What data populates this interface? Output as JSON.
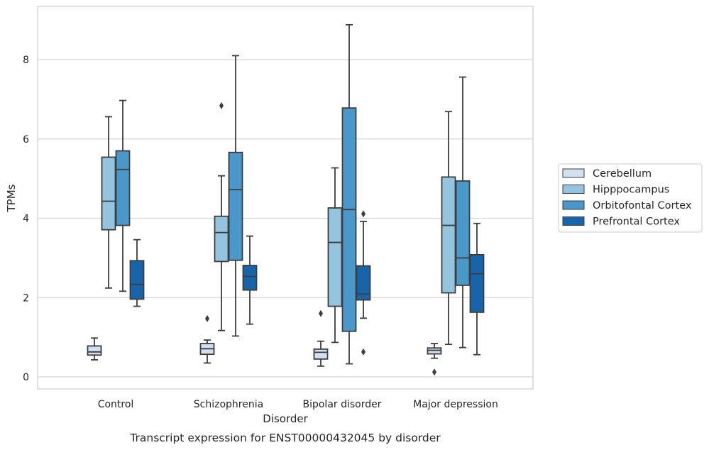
{
  "caption": "Transcript expression for ENST00000432045 by disorder",
  "chart_data": {
    "type": "box",
    "xlabel": "Disorder",
    "ylabel": "TPMs",
    "ylim": [
      -0.3,
      9.4
    ],
    "yticks": [
      0,
      2,
      4,
      6,
      8
    ],
    "grid": "horizontal",
    "legend_position": "right",
    "categories": [
      "Control",
      "Schizophrenia",
      "Bipolar disorder",
      "Major depression"
    ],
    "series": [
      {
        "name": "Cerebellum",
        "color": "#d0e1f2",
        "boxes": [
          {
            "whislo": 0.43,
            "q1": 0.55,
            "med": 0.63,
            "q3": 0.78,
            "whishi": 0.98,
            "fliers": []
          },
          {
            "whislo": 0.35,
            "q1": 0.57,
            "med": 0.71,
            "q3": 0.84,
            "whishi": 0.93,
            "fliers": [
              1.47
            ]
          },
          {
            "whislo": 0.27,
            "q1": 0.45,
            "med": 0.62,
            "q3": 0.7,
            "whishi": 0.9,
            "fliers": [
              1.6
            ]
          },
          {
            "whislo": 0.47,
            "q1": 0.58,
            "med": 0.67,
            "q3": 0.73,
            "whishi": 0.84,
            "fliers": [
              0.12
            ]
          }
        ]
      },
      {
        "name": "Hipppocampus",
        "color": "#94c4df",
        "boxes": [
          {
            "whislo": 2.24,
            "q1": 3.71,
            "med": 4.43,
            "q3": 5.54,
            "whishi": 6.56,
            "fliers": []
          },
          {
            "whislo": 1.17,
            "q1": 2.91,
            "med": 3.64,
            "q3": 4.05,
            "whishi": 5.07,
            "fliers": [
              6.84
            ]
          },
          {
            "whislo": 0.87,
            "q1": 1.78,
            "med": 3.39,
            "q3": 4.26,
            "whishi": 5.27,
            "fliers": []
          },
          {
            "whislo": 0.82,
            "q1": 2.12,
            "med": 3.82,
            "q3": 5.04,
            "whishi": 6.69,
            "fliers": []
          }
        ]
      },
      {
        "name": "Orbitofontal Cortex",
        "color": "#4a98c9",
        "boxes": [
          {
            "whislo": 2.16,
            "q1": 3.82,
            "med": 5.23,
            "q3": 5.7,
            "whishi": 6.97,
            "fliers": []
          },
          {
            "whislo": 1.03,
            "q1": 2.94,
            "med": 4.72,
            "q3": 5.66,
            "whishi": 8.1,
            "fliers": []
          },
          {
            "whislo": 0.33,
            "q1": 1.15,
            "med": 4.22,
            "q3": 6.78,
            "whishi": 8.88,
            "fliers": []
          },
          {
            "whislo": 0.74,
            "q1": 2.31,
            "med": 3.0,
            "q3": 4.94,
            "whishi": 7.56,
            "fliers": []
          }
        ]
      },
      {
        "name": "Prefrontal Cortex",
        "color": "#1764ab",
        "boxes": [
          {
            "whislo": 1.78,
            "q1": 1.96,
            "med": 2.33,
            "q3": 2.93,
            "whishi": 3.46,
            "fliers": []
          },
          {
            "whislo": 1.33,
            "q1": 2.19,
            "med": 2.53,
            "q3": 2.81,
            "whishi": 3.55,
            "fliers": []
          },
          {
            "whislo": 1.48,
            "q1": 1.94,
            "med": 2.09,
            "q3": 2.8,
            "whishi": 3.92,
            "fliers": [
              4.11,
              0.63
            ]
          },
          {
            "whislo": 0.56,
            "q1": 1.63,
            "med": 2.6,
            "q3": 3.08,
            "whishi": 3.87,
            "fliers": []
          }
        ]
      }
    ]
  }
}
